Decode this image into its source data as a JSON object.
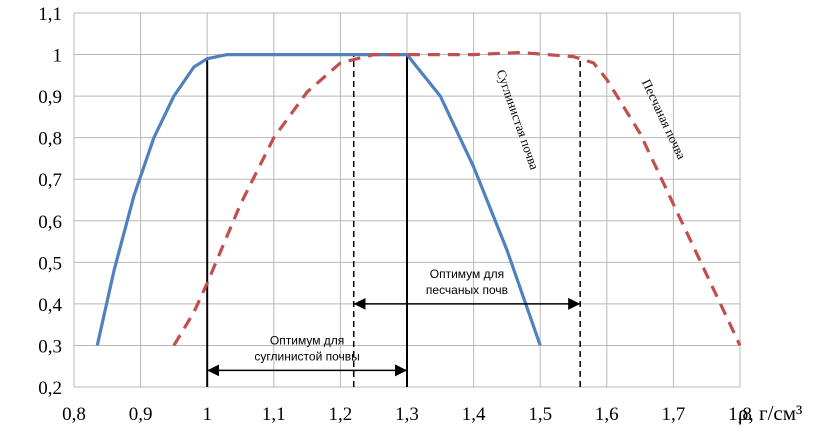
{
  "chart_data": {
    "type": "line",
    "xlabel": "ρ, г/см³",
    "ylabel": "",
    "xlim": [
      0.8,
      1.8
    ],
    "ylim": [
      0.2,
      1.1
    ],
    "x_ticks": [
      0.8,
      0.9,
      1.0,
      1.1,
      1.2,
      1.3,
      1.4,
      1.5,
      1.6,
      1.7,
      1.8
    ],
    "x_tick_labels": [
      "0,8",
      "0,9",
      "1",
      "1,1",
      "1,2",
      "1,3",
      "1,4",
      "1,5",
      "1,6",
      "1,7",
      "1,8"
    ],
    "y_ticks": [
      0.2,
      0.3,
      0.4,
      0.5,
      0.6,
      0.7,
      0.8,
      0.9,
      1.0,
      1.1
    ],
    "y_tick_labels": [
      "0,2",
      "0,3",
      "0,4",
      "0,5",
      "0,6",
      "0,7",
      "0,8",
      "0,9",
      "1",
      "1,1"
    ],
    "grid": true,
    "series": [
      {
        "name": "Суглинистая почва",
        "color": "#4f81bd",
        "style": "solid",
        "points": [
          [
            0.835,
            0.3
          ],
          [
            0.86,
            0.48
          ],
          [
            0.89,
            0.66
          ],
          [
            0.92,
            0.8
          ],
          [
            0.95,
            0.9
          ],
          [
            0.98,
            0.97
          ],
          [
            1.0,
            0.99
          ],
          [
            1.03,
            1.0
          ],
          [
            1.1,
            1.0
          ],
          [
            1.2,
            1.0
          ],
          [
            1.3,
            1.0
          ],
          [
            1.35,
            0.9
          ],
          [
            1.4,
            0.73
          ],
          [
            1.45,
            0.53
          ],
          [
            1.5,
            0.3
          ]
        ]
      },
      {
        "name": "Песчаная почва",
        "color": "#c0504d",
        "style": "dashed",
        "points": [
          [
            0.95,
            0.3
          ],
          [
            0.98,
            0.38
          ],
          [
            1.0,
            0.45
          ],
          [
            1.05,
            0.64
          ],
          [
            1.1,
            0.8
          ],
          [
            1.15,
            0.91
          ],
          [
            1.2,
            0.98
          ],
          [
            1.25,
            1.0
          ],
          [
            1.3,
            1.0
          ],
          [
            1.4,
            1.0
          ],
          [
            1.47,
            1.005
          ],
          [
            1.55,
            0.995
          ],
          [
            1.58,
            0.98
          ],
          [
            1.6,
            0.94
          ],
          [
            1.65,
            0.81
          ],
          [
            1.7,
            0.64
          ],
          [
            1.75,
            0.47
          ],
          [
            1.8,
            0.3
          ]
        ]
      }
    ],
    "vlines": [
      {
        "x": 1.0,
        "from": 0.2,
        "to": 0.99,
        "style": "solid"
      },
      {
        "x": 1.3,
        "from": 0.2,
        "to": 1.0,
        "style": "solid"
      },
      {
        "x": 1.22,
        "from": 0.2,
        "to": 1.0,
        "style": "dashed"
      },
      {
        "x": 1.56,
        "from": 0.2,
        "to": 0.995,
        "style": "dashed"
      }
    ],
    "ranges": [
      {
        "from": 1.0,
        "to": 1.3,
        "y": 0.24,
        "label_lines": [
          "Оптимум для",
          "суглинистой почвы"
        ]
      },
      {
        "from": 1.22,
        "to": 1.56,
        "y": 0.4,
        "label_lines": [
          "Оптимум для",
          "песчаных почв"
        ]
      }
    ],
    "curve_labels": [
      {
        "text": "Суглинистая почва",
        "series": 0,
        "x": 1.46,
        "y": 0.84
      },
      {
        "text": "Песчаная почва",
        "series": 1,
        "x": 1.68,
        "y": 0.84
      }
    ]
  }
}
